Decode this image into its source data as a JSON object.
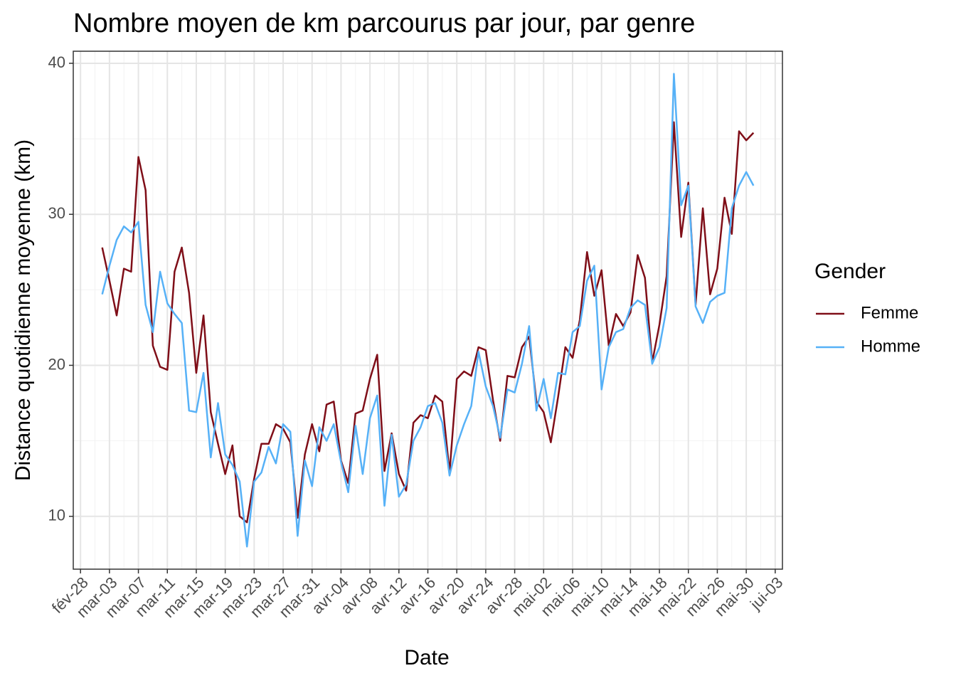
{
  "chart_data": {
    "type": "line",
    "title": "Nombre moyen de km parcourus par jour, par genre",
    "xlabel": "Date",
    "ylabel": "Distance quotidienne moyenne (km)",
    "legend_title": "Gender",
    "legend": "right",
    "grid": true,
    "x": [
      "mar-02",
      "mar-03",
      "mar-04",
      "mar-05",
      "mar-06",
      "mar-07",
      "mar-08",
      "mar-09",
      "mar-10",
      "mar-11",
      "mar-12",
      "mar-13",
      "mar-14",
      "mar-15",
      "mar-16",
      "mar-17",
      "mar-18",
      "mar-19",
      "mar-20",
      "mar-21",
      "mar-22",
      "mar-23",
      "mar-24",
      "mar-25",
      "mar-26",
      "mar-27",
      "mar-28",
      "mar-29",
      "mar-30",
      "mar-31",
      "avr-01",
      "avr-02",
      "avr-03",
      "avr-04",
      "avr-05",
      "avr-06",
      "avr-07",
      "avr-08",
      "avr-09",
      "avr-10",
      "avr-11",
      "avr-12",
      "avr-13",
      "avr-14",
      "avr-15",
      "avr-16",
      "avr-17",
      "avr-18",
      "avr-19",
      "avr-20",
      "avr-21",
      "avr-22",
      "avr-23",
      "avr-24",
      "avr-25",
      "avr-26",
      "avr-27",
      "avr-28",
      "avr-29",
      "avr-30",
      "mai-01",
      "mai-02",
      "mai-03",
      "mai-04",
      "mai-05",
      "mai-06",
      "mai-07",
      "mai-08",
      "mai-09",
      "mai-10",
      "mai-11",
      "mai-12",
      "mai-13",
      "mai-14",
      "mai-15",
      "mai-16",
      "mai-17",
      "mai-18",
      "mai-19",
      "mai-20",
      "mai-21",
      "mai-22",
      "mai-23",
      "mai-24",
      "mai-25",
      "mai-26",
      "mai-27",
      "mai-28",
      "mai-29",
      "mai-30",
      "mai-31"
    ],
    "series": [
      {
        "name": "Femme",
        "color": "#7f0e18",
        "values": [
          27.8,
          25.6,
          23.3,
          26.4,
          26.2,
          33.8,
          31.6,
          21.3,
          19.9,
          19.7,
          26.2,
          27.8,
          24.8,
          19.5,
          23.3,
          16.9,
          14.8,
          12.8,
          14.7,
          10.0,
          9.6,
          12.5,
          14.8,
          14.8,
          16.1,
          15.8,
          14.9,
          9.9,
          14.1,
          16.1,
          14.3,
          17.4,
          17.6,
          13.7,
          12.2,
          16.8,
          17.0,
          19.1,
          20.7,
          13.0,
          15.5,
          12.8,
          11.7,
          16.2,
          16.7,
          16.5,
          18.0,
          17.6,
          12.9,
          19.1,
          19.6,
          19.3,
          21.2,
          21.0,
          17.7,
          15.0,
          19.3,
          19.2,
          21.2,
          21.9,
          17.6,
          16.9,
          14.9,
          17.9,
          21.2,
          20.5,
          23.0,
          27.5,
          24.6,
          26.3,
          21.3,
          23.4,
          22.6,
          23.5,
          27.3,
          25.8,
          20.2,
          22.7,
          25.9,
          36.1,
          28.5,
          32.1,
          24.0,
          30.4,
          24.7,
          26.4,
          31.1,
          28.7,
          35.5,
          34.9,
          35.4
        ]
      },
      {
        "name": "Homme",
        "color": "#56b1f7",
        "values": [
          24.7,
          26.6,
          28.3,
          29.2,
          28.8,
          29.5,
          24.0,
          22.2,
          26.2,
          24.1,
          23.4,
          22.8,
          17.0,
          16.9,
          19.5,
          13.9,
          17.5,
          14.1,
          13.4,
          12.3,
          8.0,
          12.3,
          12.9,
          14.6,
          13.5,
          16.1,
          15.6,
          8.7,
          13.7,
          12.0,
          15.9,
          15.0,
          16.1,
          13.6,
          11.6,
          16.0,
          12.8,
          16.5,
          18.0,
          10.7,
          15.4,
          11.3,
          12.1,
          15.0,
          15.9,
          17.3,
          17.5,
          16.2,
          12.7,
          14.7,
          16.1,
          17.3,
          20.9,
          18.6,
          17.3,
          15.2,
          18.4,
          18.2,
          20.1,
          22.6,
          17.0,
          19.1,
          16.5,
          19.5,
          19.4,
          22.2,
          22.6,
          25.6,
          26.6,
          18.4,
          21.2,
          22.2,
          22.4,
          23.8,
          24.3,
          24.0,
          20.1,
          21.2,
          23.8,
          39.3,
          30.6,
          31.9,
          23.9,
          22.8,
          24.2,
          24.6,
          24.8,
          30.4,
          31.9,
          32.8,
          31.9
        ]
      }
    ],
    "xlim": [
      "fév-27",
      "jui-04"
    ],
    "xticks": [
      "fév-28",
      "mar-03",
      "mar-07",
      "mar-11",
      "mar-15",
      "mar-19",
      "mar-23",
      "mar-27",
      "mar-31",
      "avr-04",
      "avr-08",
      "avr-12",
      "avr-16",
      "avr-20",
      "avr-24",
      "avr-28",
      "mai-02",
      "mai-06",
      "mai-10",
      "mai-14",
      "mai-18",
      "mai-22",
      "mai-26",
      "mai-30",
      "jui-03"
    ],
    "ylim": [
      6.5,
      40.8
    ],
    "yticks": [
      10,
      20,
      30,
      40
    ]
  }
}
